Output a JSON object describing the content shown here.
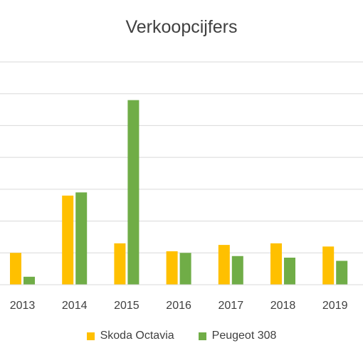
{
  "chart_data": {
    "type": "bar",
    "title": "Verkoopcijfers",
    "xlabel": "",
    "ylabel": "",
    "categories": [
      "2013",
      "2014",
      "2015",
      "2016",
      "2017",
      "2018",
      "2019"
    ],
    "series": [
      {
        "name": "Skoda Octavia",
        "color": "#FFC000",
        "values": [
          1.0,
          2.8,
          1.3,
          1.05,
          1.25,
          1.3,
          1.2
        ]
      },
      {
        "name": "Peugeot 308",
        "color": "#70AD47",
        "values": [
          0.25,
          2.9,
          5.8,
          1.0,
          0.9,
          0.85,
          0.75
        ]
      }
    ],
    "ylim": [
      0,
      7
    ],
    "grid": true,
    "y_tick_labels_visible": false,
    "legend_position": "bottom"
  }
}
